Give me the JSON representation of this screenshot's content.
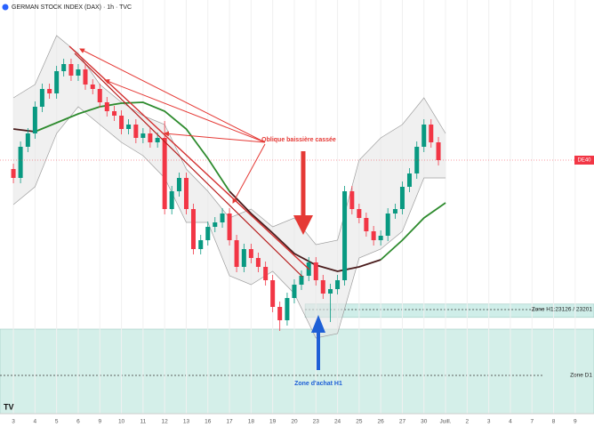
{
  "chart_data": {
    "type": "candlestick",
    "title": "GERMAN STOCK INDEX (DAX) · 1h · TVC",
    "xlim": [
      -0.62,
      26.87
    ],
    "ylim": [
      22585,
      24910
    ],
    "xticks": [
      {
        "value": 0,
        "label": "3"
      },
      {
        "value": 1,
        "label": "4"
      },
      {
        "value": 2,
        "label": "5"
      },
      {
        "value": 3,
        "label": "6"
      },
      {
        "value": 4,
        "label": "9"
      },
      {
        "value": 5,
        "label": "10"
      },
      {
        "value": 6,
        "label": "11"
      },
      {
        "value": 7,
        "label": "12"
      },
      {
        "value": 8,
        "label": "13"
      },
      {
        "value": 9,
        "label": "16"
      },
      {
        "value": 10,
        "label": "17"
      },
      {
        "value": 11,
        "label": "18"
      },
      {
        "value": 12,
        "label": "19"
      },
      {
        "value": 13,
        "label": "20"
      },
      {
        "value": 14,
        "label": "23"
      },
      {
        "value": 15,
        "label": "24"
      },
      {
        "value": 16,
        "label": "25"
      },
      {
        "value": 17,
        "label": "26"
      },
      {
        "value": 18,
        "label": "27"
      },
      {
        "value": 19,
        "label": "30"
      },
      {
        "value": 20,
        "label": "Juill."
      },
      {
        "value": 21,
        "label": "2"
      },
      {
        "value": 22,
        "label": "3"
      },
      {
        "value": 23,
        "label": "4"
      },
      {
        "value": 24,
        "label": "7"
      },
      {
        "value": 25,
        "label": "8"
      },
      {
        "value": 26,
        "label": "9"
      }
    ],
    "grid": true,
    "up_color": "#089981",
    "down_color": "#f23645",
    "x": [
      0,
      0.33,
      0.67,
      1,
      1.33,
      1.67,
      2,
      2.33,
      2.67,
      3,
      3.33,
      3.67,
      4,
      4.33,
      4.67,
      5,
      5.33,
      5.67,
      6,
      6.33,
      6.67,
      7,
      7.33,
      7.67,
      8,
      8.33,
      8.67,
      9,
      9.33,
      9.67,
      10,
      10.33,
      10.67,
      11,
      11.33,
      11.67,
      12,
      12.33,
      12.67,
      13,
      13.33,
      13.67,
      14,
      14.33,
      14.67,
      15,
      15.33,
      15.67,
      16,
      16.33,
      16.67,
      17,
      17.33,
      17.67,
      18,
      18.33,
      18.67,
      19,
      19.33,
      19.67
    ],
    "open": [
      23960,
      23910,
      24085,
      24160,
      24310,
      24410,
      24385,
      24510,
      24550,
      24485,
      24520,
      24435,
      24410,
      24335,
      24285,
      24260,
      24185,
      24210,
      24135,
      24160,
      24110,
      24135,
      23735,
      23835,
      23910,
      23735,
      23510,
      23560,
      23635,
      23660,
      23710,
      23560,
      23410,
      23510,
      23460,
      23410,
      23335,
      23185,
      23110,
      23235,
      23310,
      23360,
      23435,
      23335,
      23260,
      23285,
      23335,
      23835,
      23735,
      23685,
      23610,
      23560,
      23585,
      23710,
      23735,
      23860,
      23935,
      24085,
      24210,
      24110
    ],
    "high": [
      23990,
      24115,
      24190,
      24340,
      24440,
      24440,
      24540,
      24580,
      24580,
      24550,
      24550,
      24465,
      24440,
      24365,
      24315,
      24290,
      24240,
      24240,
      24190,
      24190,
      24165,
      24230,
      23865,
      23940,
      23940,
      23765,
      23590,
      23665,
      23690,
      23740,
      23740,
      23590,
      23540,
      23540,
      23490,
      23440,
      23365,
      23215,
      23265,
      23340,
      23390,
      23465,
      23465,
      23365,
      23315,
      23365,
      23865,
      23865,
      23765,
      23715,
      23640,
      23615,
      23740,
      23765,
      23890,
      23965,
      24115,
      24240,
      24240,
      24140
    ],
    "low": [
      23880,
      23880,
      24055,
      24130,
      24280,
      24355,
      24355,
      24480,
      24455,
      24455,
      24405,
      24380,
      24305,
      24255,
      24230,
      24155,
      24155,
      24105,
      24105,
      24080,
      24080,
      23705,
      23705,
      23805,
      23705,
      23480,
      23480,
      23530,
      23605,
      23630,
      23530,
      23380,
      23380,
      23430,
      23380,
      23305,
      23155,
      23050,
      23080,
      23205,
      23280,
      23330,
      23305,
      23230,
      23100,
      23255,
      23305,
      23705,
      23655,
      23580,
      23530,
      23530,
      23555,
      23680,
      23705,
      23830,
      23905,
      24055,
      24080,
      23980
    ],
    "close": [
      23910,
      24085,
      24160,
      24310,
      24410,
      24385,
      24510,
      24550,
      24485,
      24520,
      24435,
      24410,
      24335,
      24285,
      24260,
      24185,
      24210,
      24135,
      24160,
      24110,
      24135,
      23735,
      23835,
      23910,
      23735,
      23510,
      23560,
      23635,
      23660,
      23710,
      23560,
      23410,
      23510,
      23460,
      23410,
      23335,
      23185,
      23110,
      23235,
      23310,
      23360,
      23435,
      23335,
      23260,
      23285,
      23335,
      23835,
      23735,
      23685,
      23610,
      23560,
      23585,
      23710,
      23735,
      23860,
      23935,
      24085,
      24210,
      24110,
      24010
    ],
    "overlays": {
      "x": [
        0,
        1,
        2,
        3,
        4,
        5,
        6,
        7,
        8,
        9,
        10,
        11,
        12,
        13,
        14,
        15,
        16,
        17,
        18,
        19,
        20
      ],
      "bands": {
        "color": "#9e9e9e",
        "fill": "#e6e6e6",
        "upper": [
          24360,
          24435,
          24710,
          24610,
          24435,
          24335,
          24260,
          24210,
          23960,
          23835,
          23685,
          23735,
          23635,
          23685,
          23535,
          23560,
          24010,
          24135,
          24210,
          24360,
          24160
        ],
        "lower": [
          23760,
          23860,
          24160,
          24310,
          24210,
          24110,
          24035,
          23910,
          23660,
          23660,
          23360,
          23310,
          23385,
          23260,
          23010,
          23035,
          23460,
          23510,
          23610,
          23910,
          23910
        ]
      },
      "series": [
        {
          "color": "#4a1c1c",
          "values": [
            24185,
            24170,
            null,
            null,
            null,
            null,
            null,
            null,
            null,
            null,
            23835,
            23710,
            23600,
            23485,
            23420,
            23385,
            23410,
            23450,
            null,
            null,
            null
          ]
        },
        {
          "color": "#2e8b2e",
          "values": [
            null,
            24170,
            24220,
            24270,
            24310,
            24330,
            24335,
            24285,
            24185,
            24020,
            23835,
            null,
            null,
            null,
            null,
            null,
            null,
            23450,
            23560,
            23685,
            23770
          ]
        }
      ]
    },
    "zones": [
      {
        "label": "Zone H1:23126 / 23201",
        "low": 23126,
        "high": 23201,
        "line": 23170,
        "start": 13.5,
        "color": "#cfeee9"
      },
      {
        "label": "Zone D1",
        "low": 22585,
        "high": 23060,
        "line": 22800,
        "color": "#d4efe9"
      }
    ],
    "last_label": "DE40",
    "last_color": "#f23645",
    "annotations": [
      {
        "text": "Oblique baissière cassée",
        "color": "#e53935"
      },
      {
        "text": "Zone d'achat H1",
        "color": "#1e5fd6"
      }
    ]
  }
}
